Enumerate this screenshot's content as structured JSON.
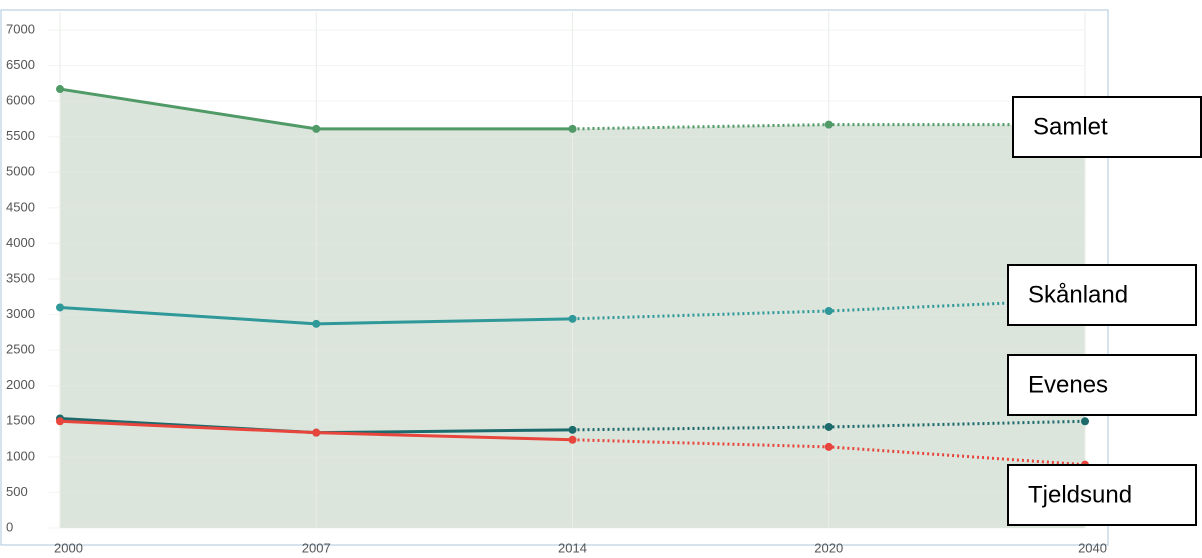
{
  "chart_data": {
    "type": "line",
    "categories": [
      "2000",
      "2007",
      "2014",
      "2020",
      "2040"
    ],
    "series": [
      {
        "name": "Samlet",
        "color": "#4f9a66",
        "values": [
          6170,
          5610,
          5610,
          5670,
          5670
        ]
      },
      {
        "name": "Skånland",
        "color": "#2f9898",
        "values": [
          3100,
          2870,
          2940,
          3050,
          3210
        ]
      },
      {
        "name": "Evenes",
        "color": "#1d6a6c",
        "values": [
          1540,
          1340,
          1380,
          1420,
          1500
        ]
      },
      {
        "name": "Tjeldsund",
        "color": "#e8453c",
        "values": [
          1500,
          1340,
          1240,
          1140,
          890
        ]
      }
    ],
    "area_fill": "#dbe5dc",
    "dotted_from_index": 2,
    "ylim": [
      0,
      7000
    ],
    "yticks": [
      0,
      500,
      1000,
      1500,
      2000,
      2500,
      3000,
      3500,
      4000,
      4500,
      5000,
      5500,
      6000,
      6500,
      7000
    ],
    "grid": true
  }
}
